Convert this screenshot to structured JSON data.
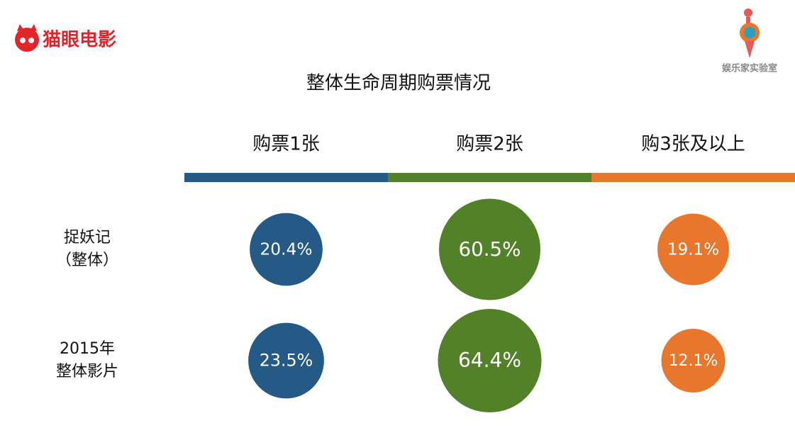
{
  "header": {
    "left_logo": "猫眼电影",
    "right_logo": "娱乐家实验室"
  },
  "chart_data": {
    "type": "bubble-matrix",
    "title": "整体生命周期购票情况",
    "categories": [
      "购票1张",
      "购票2张",
      "购3张及以上"
    ],
    "colors": [
      "#245a85",
      "#538129",
      "#e8762c"
    ],
    "series": [
      {
        "name": "捉妖记\n（整体）",
        "values": [
          20.4,
          60.5,
          19.1
        ],
        "value_labels": [
          "20.4%",
          "60.5%",
          "19.1%"
        ]
      },
      {
        "name": "2015年\n整体影片",
        "values": [
          23.5,
          64.4,
          12.1
        ],
        "value_labels": [
          "23.5%",
          "64.4%",
          "12.1%"
        ]
      }
    ]
  }
}
